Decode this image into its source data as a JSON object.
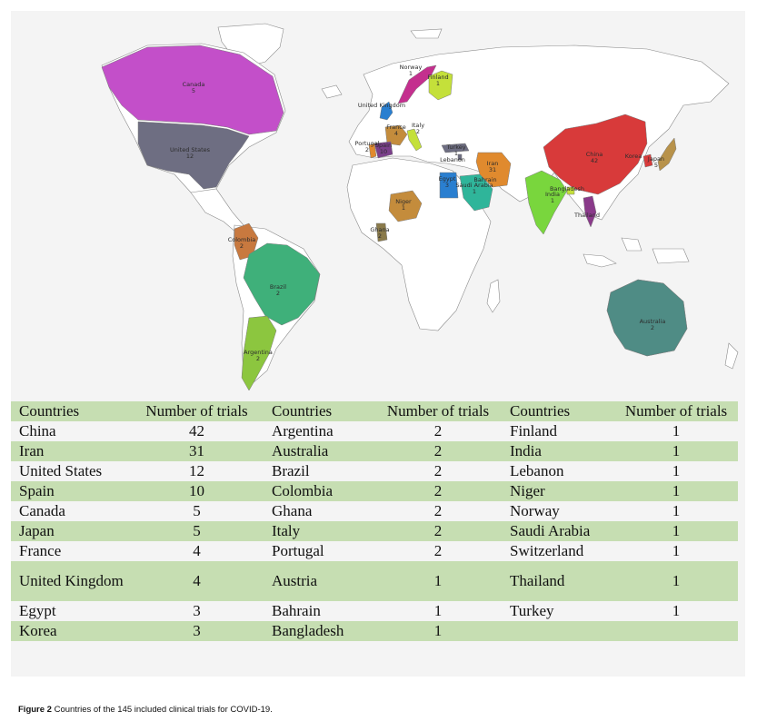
{
  "map": {
    "labels": [
      {
        "name": "Canada",
        "value": "5"
      },
      {
        "name": "United States",
        "value": "12"
      },
      {
        "name": "Norway",
        "value": "1"
      },
      {
        "name": "Finland",
        "value": "1"
      },
      {
        "name": "United Kingdom",
        "value": ""
      },
      {
        "name": "France",
        "value": "4"
      },
      {
        "name": "Portugal",
        "value": "2"
      },
      {
        "name": "Spain",
        "value": "10"
      },
      {
        "name": "Italy",
        "value": "2"
      },
      {
        "name": "Turkey",
        "value": "1"
      },
      {
        "name": "Lebanon",
        "value": ""
      },
      {
        "name": "Iran",
        "value": "31"
      },
      {
        "name": "Egypt",
        "value": "3"
      },
      {
        "name": "Bahrain",
        "value": ""
      },
      {
        "name": "Saudi Arabia",
        "value": "1"
      },
      {
        "name": "China",
        "value": "42"
      },
      {
        "name": "Korea",
        "value": ""
      },
      {
        "name": "Japan",
        "value": "5"
      },
      {
        "name": "Bangladesh",
        "value": ""
      },
      {
        "name": "India",
        "value": "1"
      },
      {
        "name": "Thailand",
        "value": ""
      },
      {
        "name": "Niger",
        "value": "1"
      },
      {
        "name": "Ghana",
        "value": "2"
      },
      {
        "name": "Colombia",
        "value": "2"
      },
      {
        "name": "Brazil",
        "value": "2"
      },
      {
        "name": "Argentina",
        "value": "2"
      },
      {
        "name": "Australia",
        "value": "2"
      }
    ],
    "colors": {
      "canada": "#c34fc9",
      "united_states": "#6e6e82",
      "china": "#d83a3a",
      "iran": "#e08a2e",
      "spain": "#7a3f8a",
      "egypt": "#2a7fd0",
      "saudi_arabia": "#2fb59a",
      "india": "#79d63d",
      "brazil": "#3fb07a",
      "argentina": "#8cc63f",
      "australia": "#4f8c85",
      "colombia": "#c8793f",
      "niger": "#c48c3c",
      "ghana": "#8a7a4a",
      "norway": "#c42f8e",
      "finland": "#c4e03a",
      "japan": "#b8924a",
      "thailand": "#8a3a8a",
      "base_land": "#ffffff",
      "border": "#8a8a8a"
    }
  },
  "table": {
    "headers": [
      "Countries",
      "Number of trials",
      "Countries",
      "Number of trials",
      "Countries",
      "Number of trials"
    ],
    "rows": [
      [
        "China",
        "42",
        "Argentina",
        "2",
        "Finland",
        "1"
      ],
      [
        "Iran",
        "31",
        "Australia",
        "2",
        "India",
        "1"
      ],
      [
        "United States",
        "12",
        "Brazil",
        "2",
        "Lebanon",
        "1"
      ],
      [
        "Spain",
        "10",
        "Colombia",
        "2",
        "Niger",
        "1"
      ],
      [
        "Canada",
        "5",
        "Ghana",
        "2",
        "Norway",
        "1"
      ],
      [
        "Japan",
        "5",
        "Italy",
        "2",
        "Saudi Arabia",
        "1"
      ],
      [
        "France",
        "4",
        "Portugal",
        "2",
        "Switzerland",
        "1"
      ],
      [
        "United Kingdom",
        "4",
        "Austria",
        "1",
        "Thailand",
        "1"
      ],
      [
        "Egypt",
        "3",
        "Bahrain",
        "1",
        "Turkey",
        "1"
      ],
      [
        "Korea",
        "3",
        "Bangladesh",
        "1",
        "",
        ""
      ]
    ]
  },
  "caption": {
    "label": "Figure 2",
    "text": " Countries of the 145 included clinical trials for COVID-19."
  }
}
